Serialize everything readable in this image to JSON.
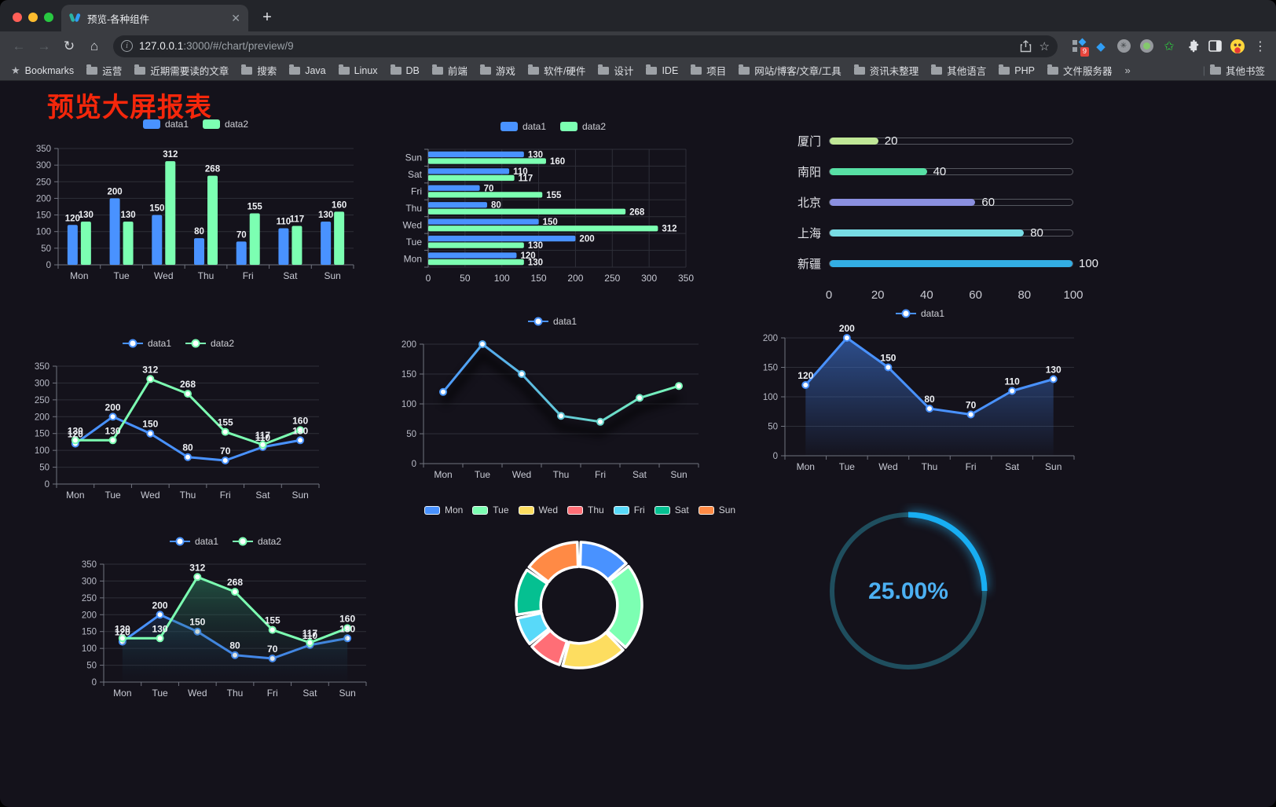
{
  "browser": {
    "tab_title": "预览-各种组件",
    "url_host": "127.0.0.1",
    "url_rest": ":3000/#/chart/preview/9",
    "ext_badge": "9",
    "bookmarks_label": "Bookmarks",
    "bookmarks": [
      "运营",
      "近期需要读的文章",
      "搜索",
      "Java",
      "Linux",
      "DB",
      "前端",
      "游戏",
      "软件/硬件",
      "设计",
      "IDE",
      "项目",
      "网站/博客/文章/工具",
      "资讯未整理",
      "其他语言",
      "PHP",
      "文件服务器"
    ],
    "bookmarks_overflow": "»",
    "other_bookmarks": "其他书签"
  },
  "page": {
    "title": "预览大屏报表",
    "title_color": "#f5270b",
    "background": "#14121b"
  },
  "chart_data": [
    {
      "id": "c1",
      "type": "bar",
      "legend": [
        "data1",
        "data2"
      ],
      "categories": [
        "Mon",
        "Tue",
        "Wed",
        "Thu",
        "Fri",
        "Sat",
        "Sun"
      ],
      "series": [
        {
          "name": "data1",
          "color": "#4992ff",
          "values": [
            120,
            200,
            150,
            80,
            70,
            110,
            130
          ]
        },
        {
          "name": "data2",
          "color": "#7cffb2",
          "values": [
            130,
            130,
            312,
            268,
            155,
            117,
            160
          ]
        }
      ],
      "ylim": [
        0,
        350
      ],
      "yticks": [
        0,
        50,
        100,
        150,
        200,
        250,
        300,
        350
      ],
      "value_labels": true,
      "legend_position": "top",
      "grid": true
    },
    {
      "id": "c2",
      "type": "bar",
      "orientation": "horizontal",
      "legend": [
        "data1",
        "data2"
      ],
      "categories": [
        "Mon",
        "Tue",
        "Wed",
        "Thu",
        "Fri",
        "Sat",
        "Sun"
      ],
      "display_order_top_to_bottom": [
        "Sun",
        "Sat",
        "Fri",
        "Thu",
        "Wed",
        "Tue",
        "Mon"
      ],
      "series": [
        {
          "name": "data1",
          "color": "#4992ff",
          "values": [
            120,
            200,
            150,
            80,
            70,
            110,
            130
          ]
        },
        {
          "name": "data2",
          "color": "#7cffb2",
          "values": [
            130,
            130,
            312,
            268,
            155,
            117,
            160
          ]
        }
      ],
      "xlim": [
        0,
        350
      ],
      "xticks": [
        0,
        50,
        100,
        150,
        200,
        250,
        300,
        350
      ],
      "value_labels": true,
      "grid": true
    },
    {
      "id": "c3",
      "type": "bar",
      "orientation": "horizontal",
      "style": "progress-capsule",
      "categories": [
        "厦门",
        "南阳",
        "北京",
        "上海",
        "新疆"
      ],
      "values": [
        20,
        40,
        60,
        80,
        100
      ],
      "colors": [
        "#c0e797",
        "#58e0a5",
        "#8b90e0",
        "#78dce4",
        "#33aee4"
      ],
      "xlim": [
        0,
        100
      ],
      "xticks": [
        0,
        20,
        40,
        60,
        80,
        100
      ],
      "value_labels": true
    },
    {
      "id": "c4",
      "type": "line",
      "legend": [
        "data1",
        "data2"
      ],
      "categories": [
        "Mon",
        "Tue",
        "Wed",
        "Thu",
        "Fri",
        "Sat",
        "Sun"
      ],
      "series": [
        {
          "name": "data1",
          "color": "#4992ff",
          "values": [
            120,
            200,
            150,
            80,
            70,
            110,
            130
          ]
        },
        {
          "name": "data2",
          "color": "#7cffb2",
          "values": [
            130,
            130,
            312,
            268,
            155,
            117,
            160
          ]
        }
      ],
      "ylim": [
        0,
        350
      ],
      "yticks": [
        0,
        50,
        100,
        150,
        200,
        250,
        300,
        350
      ],
      "value_labels": true,
      "grid": true
    },
    {
      "id": "c5",
      "type": "line",
      "legend": [
        "data1"
      ],
      "categories": [
        "Mon",
        "Tue",
        "Wed",
        "Thu",
        "Fri",
        "Sat",
        "Sun"
      ],
      "series": [
        {
          "name": "data1",
          "color_gradient": [
            "#4992ff",
            "#7cffb2"
          ],
          "values": [
            120,
            200,
            150,
            80,
            70,
            110,
            130
          ]
        }
      ],
      "ylim": [
        0,
        200
      ],
      "yticks": [
        0,
        50,
        100,
        150,
        200
      ],
      "value_labels": false,
      "shadow": true,
      "grid": true
    },
    {
      "id": "c6",
      "type": "area",
      "legend": [
        "data1"
      ],
      "categories": [
        "Mon",
        "Tue",
        "Wed",
        "Thu",
        "Fri",
        "Sat",
        "Sun"
      ],
      "series": [
        {
          "name": "data1",
          "color": "#4992ff",
          "values": [
            120,
            200,
            150,
            80,
            70,
            110,
            130
          ]
        }
      ],
      "ylim": [
        0,
        200
      ],
      "yticks": [
        0,
        50,
        100,
        150,
        200
      ],
      "value_labels": true,
      "grid": true
    },
    {
      "id": "c7",
      "type": "area",
      "legend": [
        "data1",
        "data2"
      ],
      "categories": [
        "Mon",
        "Tue",
        "Wed",
        "Thu",
        "Fri",
        "Sat",
        "Sun"
      ],
      "series": [
        {
          "name": "data1",
          "color": "#4992ff",
          "values": [
            120,
            200,
            150,
            80,
            70,
            110,
            130
          ]
        },
        {
          "name": "data2",
          "color": "#7cffb2",
          "values": [
            130,
            130,
            312,
            268,
            155,
            117,
            160
          ]
        }
      ],
      "ylim": [
        0,
        350
      ],
      "yticks": [
        0,
        50,
        100,
        150,
        200,
        250,
        300,
        350
      ],
      "value_labels": true,
      "grid": true
    },
    {
      "id": "c8",
      "type": "pie",
      "legend": [
        "Mon",
        "Tue",
        "Wed",
        "Thu",
        "Fri",
        "Sat",
        "Sun"
      ],
      "categories": [
        "Mon",
        "Tue",
        "Wed",
        "Thu",
        "Fri",
        "Sat",
        "Sun"
      ],
      "values": [
        120,
        200,
        150,
        80,
        70,
        110,
        130
      ],
      "colors": [
        "#4992ff",
        "#7cffb2",
        "#fddd60",
        "#ff6e76",
        "#58d9f9",
        "#05c091",
        "#ff8a45"
      ],
      "inner_radius_ratio": 0.61,
      "border_color": "#ffffff",
      "legend_position": "top"
    },
    {
      "id": "c9",
      "type": "gauge",
      "value": 25,
      "label": "25.00%",
      "color": "#18aef2",
      "track_color": "#1f4e5e",
      "text_color": "#4cb0f2"
    }
  ]
}
